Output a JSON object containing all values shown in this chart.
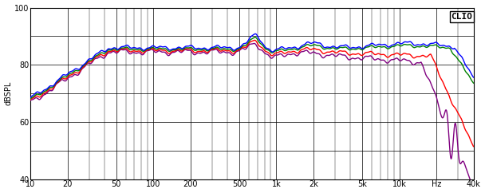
{
  "title": "CLIO",
  "ylabel": "dBSPL",
  "xmin": 10,
  "xmax": 40000,
  "ymin": 40,
  "ymax": 100,
  "yticks": [
    40,
    50,
    60,
    70,
    80,
    90,
    100
  ],
  "xticks": [
    10,
    20,
    50,
    100,
    200,
    500,
    1000,
    2000,
    5000,
    10000,
    20000,
    40000
  ],
  "xticklabels": [
    "10",
    "20",
    "50",
    "100",
    "200",
    "500",
    "1k",
    "2k",
    "5k",
    "10k",
    "Hz",
    "40k"
  ],
  "colors": [
    "#0000ff",
    "#008000",
    "#ff0000",
    "#800080"
  ],
  "background_color": "#ffffff",
  "plot_bg": "#ffffff",
  "grid_color": "#000000",
  "linewidth": 1.0,
  "figsize": [
    6.08,
    2.42
  ],
  "dpi": 100
}
